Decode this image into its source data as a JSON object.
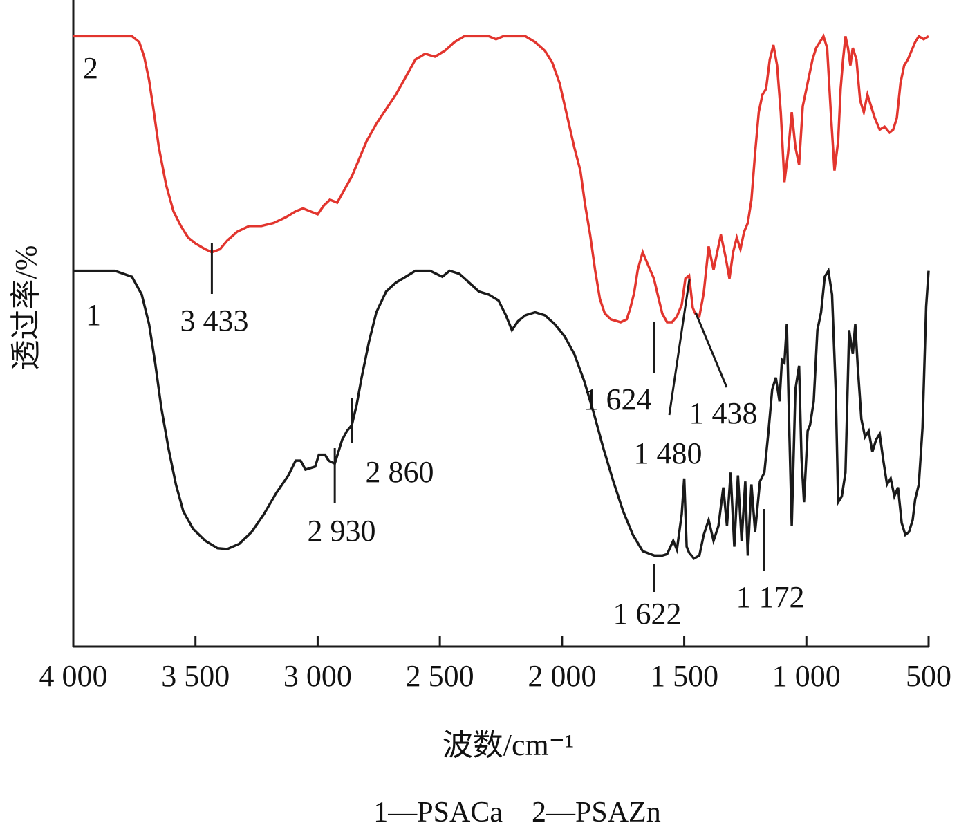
{
  "chart_data": {
    "type": "line",
    "xlabel": "波数/cm⁻¹",
    "ylabel": "透过率/%",
    "xlim": [
      4000,
      500
    ],
    "x_reversed": true,
    "x_ticks": [
      {
        "value": 4000,
        "label": "4 000"
      },
      {
        "value": 3500,
        "label": "3 500"
      },
      {
        "value": 3000,
        "label": "3 000"
      },
      {
        "value": 2500,
        "label": "2 500"
      },
      {
        "value": 2000,
        "label": "2 000"
      },
      {
        "value": 1500,
        "label": "1 500"
      },
      {
        "value": 1000,
        "label": "1 000"
      },
      {
        "value": 500,
        "label": "500"
      }
    ],
    "y_ticks_shown": false,
    "grid": false,
    "legend_text": "1—PSACa    2—PSAZn",
    "series": [
      {
        "name": "PSACa",
        "tag": "1",
        "color": "#1a1a1a",
        "points": [
          [
            4000,
            0.98
          ],
          [
            3830,
            0.98
          ],
          [
            3760,
            0.96
          ],
          [
            3720,
            0.9
          ],
          [
            3690,
            0.8
          ],
          [
            3665,
            0.67
          ],
          [
            3640,
            0.52
          ],
          [
            3610,
            0.38
          ],
          [
            3580,
            0.26
          ],
          [
            3550,
            0.17
          ],
          [
            3510,
            0.11
          ],
          [
            3460,
            0.07
          ],
          [
            3410,
            0.045
          ],
          [
            3370,
            0.042
          ],
          [
            3320,
            0.06
          ],
          [
            3270,
            0.1
          ],
          [
            3220,
            0.16
          ],
          [
            3170,
            0.23
          ],
          [
            3120,
            0.29
          ],
          [
            3090,
            0.34
          ],
          [
            3070,
            0.34
          ],
          [
            3050,
            0.31
          ],
          [
            3010,
            0.32
          ],
          [
            2995,
            0.36
          ],
          [
            2970,
            0.36
          ],
          [
            2955,
            0.34
          ],
          [
            2930,
            0.33
          ],
          [
            2915,
            0.37
          ],
          [
            2900,
            0.41
          ],
          [
            2880,
            0.44
          ],
          [
            2860,
            0.46
          ],
          [
            2840,
            0.53
          ],
          [
            2820,
            0.62
          ],
          [
            2790,
            0.74
          ],
          [
            2760,
            0.84
          ],
          [
            2720,
            0.91
          ],
          [
            2680,
            0.94
          ],
          [
            2640,
            0.96
          ],
          [
            2600,
            0.98
          ],
          [
            2540,
            0.98
          ],
          [
            2490,
            0.96
          ],
          [
            2460,
            0.98
          ],
          [
            2420,
            0.97
          ],
          [
            2380,
            0.94
          ],
          [
            2340,
            0.91
          ],
          [
            2300,
            0.9
          ],
          [
            2260,
            0.88
          ],
          [
            2230,
            0.83
          ],
          [
            2205,
            0.78
          ],
          [
            2180,
            0.81
          ],
          [
            2150,
            0.83
          ],
          [
            2110,
            0.84
          ],
          [
            2070,
            0.83
          ],
          [
            2030,
            0.8
          ],
          [
            1990,
            0.76
          ],
          [
            1950,
            0.7
          ],
          [
            1910,
            0.61
          ],
          [
            1870,
            0.5
          ],
          [
            1830,
            0.38
          ],
          [
            1790,
            0.27
          ],
          [
            1750,
            0.17
          ],
          [
            1710,
            0.09
          ],
          [
            1670,
            0.035
          ],
          [
            1622,
            0.02
          ],
          [
            1590,
            0.02
          ],
          [
            1570,
            0.025
          ],
          [
            1545,
            0.07
          ],
          [
            1530,
            0.04
          ],
          [
            1510,
            0.16
          ],
          [
            1500,
            0.28
          ],
          [
            1490,
            0.05
          ],
          [
            1480,
            0.03
          ],
          [
            1460,
            0.01
          ],
          [
            1438,
            0.02
          ],
          [
            1420,
            0.09
          ],
          [
            1400,
            0.14
          ],
          [
            1380,
            0.07
          ],
          [
            1360,
            0.12
          ],
          [
            1340,
            0.25
          ],
          [
            1325,
            0.12
          ],
          [
            1310,
            0.3
          ],
          [
            1295,
            0.05
          ],
          [
            1280,
            0.29
          ],
          [
            1265,
            0.07
          ],
          [
            1250,
            0.27
          ],
          [
            1240,
            0.02
          ],
          [
            1225,
            0.26
          ],
          [
            1210,
            0.1
          ],
          [
            1190,
            0.27
          ],
          [
            1172,
            0.3
          ],
          [
            1155,
            0.44
          ],
          [
            1140,
            0.58
          ],
          [
            1125,
            0.62
          ],
          [
            1110,
            0.54
          ],
          [
            1100,
            0.68
          ],
          [
            1090,
            0.67
          ],
          [
            1080,
            0.8
          ],
          [
            1070,
            0.45
          ],
          [
            1060,
            0.12
          ],
          [
            1045,
            0.58
          ],
          [
            1030,
            0.66
          ],
          [
            1020,
            0.35
          ],
          [
            1010,
            0.2
          ],
          [
            995,
            0.44
          ],
          [
            985,
            0.46
          ],
          [
            970,
            0.54
          ],
          [
            955,
            0.78
          ],
          [
            940,
            0.84
          ],
          [
            925,
            0.96
          ],
          [
            910,
            0.98
          ],
          [
            895,
            0.9
          ],
          [
            880,
            0.58
          ],
          [
            870,
            0.2
          ],
          [
            855,
            0.22
          ],
          [
            840,
            0.3
          ],
          [
            825,
            0.78
          ],
          [
            810,
            0.7
          ],
          [
            800,
            0.8
          ],
          [
            790,
            0.66
          ],
          [
            775,
            0.48
          ],
          [
            760,
            0.42
          ],
          [
            745,
            0.44
          ],
          [
            730,
            0.37
          ],
          [
            715,
            0.41
          ],
          [
            700,
            0.43
          ],
          [
            685,
            0.34
          ],
          [
            670,
            0.26
          ],
          [
            655,
            0.28
          ],
          [
            640,
            0.22
          ],
          [
            625,
            0.25
          ],
          [
            610,
            0.13
          ],
          [
            595,
            0.09
          ],
          [
            580,
            0.1
          ],
          [
            565,
            0.14
          ],
          [
            555,
            0.21
          ],
          [
            540,
            0.26
          ],
          [
            525,
            0.45
          ],
          [
            510,
            0.86
          ],
          [
            500,
            0.98
          ]
        ]
      },
      {
        "name": "PSAZn",
        "tag": "2",
        "color": "#e2352e",
        "points": [
          [
            4000,
            0.98
          ],
          [
            3760,
            0.98
          ],
          [
            3730,
            0.96
          ],
          [
            3710,
            0.91
          ],
          [
            3690,
            0.83
          ],
          [
            3670,
            0.72
          ],
          [
            3650,
            0.6
          ],
          [
            3620,
            0.47
          ],
          [
            3590,
            0.38
          ],
          [
            3560,
            0.33
          ],
          [
            3530,
            0.29
          ],
          [
            3500,
            0.27
          ],
          [
            3460,
            0.25
          ],
          [
            3433,
            0.24
          ],
          [
            3400,
            0.25
          ],
          [
            3370,
            0.28
          ],
          [
            3330,
            0.31
          ],
          [
            3280,
            0.33
          ],
          [
            3230,
            0.33
          ],
          [
            3180,
            0.34
          ],
          [
            3130,
            0.36
          ],
          [
            3090,
            0.38
          ],
          [
            3060,
            0.39
          ],
          [
            3030,
            0.38
          ],
          [
            3000,
            0.37
          ],
          [
            2975,
            0.4
          ],
          [
            2950,
            0.42
          ],
          [
            2920,
            0.41
          ],
          [
            2900,
            0.44
          ],
          [
            2880,
            0.47
          ],
          [
            2860,
            0.5
          ],
          [
            2830,
            0.56
          ],
          [
            2800,
            0.62
          ],
          [
            2760,
            0.68
          ],
          [
            2720,
            0.73
          ],
          [
            2680,
            0.78
          ],
          [
            2640,
            0.84
          ],
          [
            2600,
            0.9
          ],
          [
            2560,
            0.92
          ],
          [
            2520,
            0.91
          ],
          [
            2480,
            0.93
          ],
          [
            2440,
            0.96
          ],
          [
            2400,
            0.98
          ],
          [
            2300,
            0.98
          ],
          [
            2270,
            0.97
          ],
          [
            2240,
            0.98
          ],
          [
            2150,
            0.98
          ],
          [
            2110,
            0.96
          ],
          [
            2070,
            0.93
          ],
          [
            2040,
            0.89
          ],
          [
            2010,
            0.82
          ],
          [
            1980,
            0.71
          ],
          [
            1950,
            0.6
          ],
          [
            1925,
            0.52
          ],
          [
            1905,
            0.4
          ],
          [
            1885,
            0.3
          ],
          [
            1865,
            0.18
          ],
          [
            1845,
            0.08
          ],
          [
            1825,
            0.03
          ],
          [
            1800,
            0.01
          ],
          [
            1760,
            0.0
          ],
          [
            1735,
            0.01
          ],
          [
            1720,
            0.05
          ],
          [
            1705,
            0.1
          ],
          [
            1690,
            0.18
          ],
          [
            1670,
            0.24
          ],
          [
            1650,
            0.2
          ],
          [
            1624,
            0.15
          ],
          [
            1610,
            0.1
          ],
          [
            1590,
            0.03
          ],
          [
            1570,
            0.0
          ],
          [
            1550,
            0.0
          ],
          [
            1530,
            0.02
          ],
          [
            1510,
            0.06
          ],
          [
            1495,
            0.15
          ],
          [
            1480,
            0.16
          ],
          [
            1465,
            0.05
          ],
          [
            1455,
            0.03
          ],
          [
            1438,
            0.02
          ],
          [
            1420,
            0.1
          ],
          [
            1400,
            0.26
          ],
          [
            1380,
            0.18
          ],
          [
            1365,
            0.24
          ],
          [
            1350,
            0.3
          ],
          [
            1330,
            0.22
          ],
          [
            1315,
            0.15
          ],
          [
            1300,
            0.24
          ],
          [
            1285,
            0.29
          ],
          [
            1270,
            0.25
          ],
          [
            1255,
            0.31
          ],
          [
            1240,
            0.34
          ],
          [
            1225,
            0.42
          ],
          [
            1210,
            0.58
          ],
          [
            1195,
            0.72
          ],
          [
            1180,
            0.78
          ],
          [
            1165,
            0.8
          ],
          [
            1150,
            0.9
          ],
          [
            1135,
            0.95
          ],
          [
            1120,
            0.88
          ],
          [
            1105,
            0.72
          ],
          [
            1090,
            0.48
          ],
          [
            1075,
            0.58
          ],
          [
            1060,
            0.72
          ],
          [
            1045,
            0.6
          ],
          [
            1030,
            0.54
          ],
          [
            1015,
            0.74
          ],
          [
            1000,
            0.8
          ],
          [
            985,
            0.86
          ],
          [
            975,
            0.9
          ],
          [
            960,
            0.94
          ],
          [
            945,
            0.96
          ],
          [
            930,
            0.98
          ],
          [
            915,
            0.94
          ],
          [
            900,
            0.72
          ],
          [
            885,
            0.52
          ],
          [
            870,
            0.62
          ],
          [
            860,
            0.8
          ],
          [
            850,
            0.9
          ],
          [
            840,
            0.98
          ],
          [
            830,
            0.94
          ],
          [
            820,
            0.88
          ],
          [
            810,
            0.94
          ],
          [
            795,
            0.9
          ],
          [
            780,
            0.76
          ],
          [
            765,
            0.72
          ],
          [
            750,
            0.78
          ],
          [
            735,
            0.74
          ],
          [
            720,
            0.7
          ],
          [
            700,
            0.66
          ],
          [
            680,
            0.67
          ],
          [
            660,
            0.65
          ],
          [
            645,
            0.66
          ],
          [
            630,
            0.7
          ],
          [
            615,
            0.82
          ],
          [
            600,
            0.88
          ],
          [
            585,
            0.9
          ],
          [
            570,
            0.93
          ],
          [
            555,
            0.96
          ],
          [
            540,
            0.98
          ],
          [
            520,
            0.97
          ],
          [
            500,
            0.98
          ]
        ]
      }
    ],
    "peak_labels": [
      {
        "series": "PSAZn",
        "wavenumber": 3433,
        "label": "3 433"
      },
      {
        "series": "PSAZn",
        "wavenumber": 1624,
        "label": "1 624"
      },
      {
        "series": "PSAZn",
        "wavenumber": 1480,
        "label": "1 480"
      },
      {
        "series": "PSAZn",
        "wavenumber": 1438,
        "label": "1 438"
      },
      {
        "series": "PSACa",
        "wavenumber": 2930,
        "label": "2 930"
      },
      {
        "series": "PSACa",
        "wavenumber": 2860,
        "label": "2 860"
      },
      {
        "series": "PSACa",
        "wavenumber": 1622,
        "label": "1 622"
      },
      {
        "series": "PSACa",
        "wavenumber": 1172,
        "label": "1 172"
      }
    ]
  }
}
